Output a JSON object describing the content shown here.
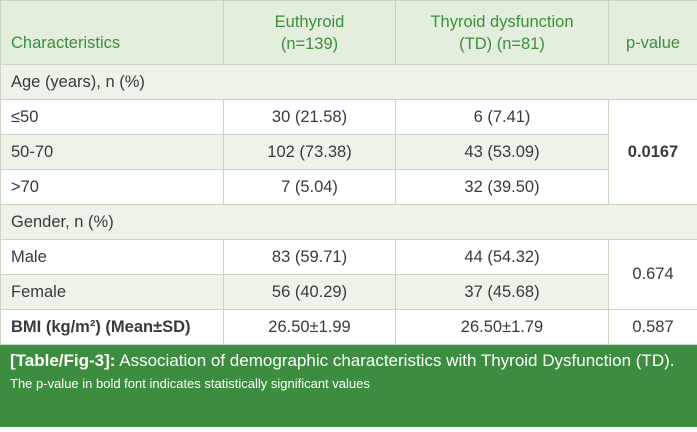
{
  "table": {
    "header": [
      [
        "Characteristics"
      ],
      [
        "Euthyroid",
        "(n=139)"
      ],
      [
        "Thyroid dysfunction",
        "(TD) (n=81)"
      ],
      [
        "p-value"
      ]
    ],
    "rows": [
      [
        "Age (years), n (%)"
      ],
      [
        "≤50",
        "30 (21.58)",
        "6 (7.41)",
        "0.0167"
      ],
      [
        "50-70",
        "102 (73.38)",
        "43 (53.09)"
      ],
      [
        ">70",
        "7 (5.04)",
        "32 (39.50)"
      ],
      [
        "Gender, n (%)"
      ],
      [
        "Male",
        "83 (59.71)",
        "44 (54.32)",
        "0.674"
      ],
      [
        "Female",
        "56 (40.29)",
        "37 (45.68)"
      ],
      [
        "BMI (kg/m²) (Mean±SD)",
        "26.50±1.99",
        "26.50±1.79",
        "0.587"
      ]
    ]
  },
  "caption": {
    "label": "[Table/Fig-3]:",
    "text": "Association of demographic characteristics with Thyroid Dysfunction (TD).",
    "note": "The p-value in bold font indicates statistically significant values"
  }
}
